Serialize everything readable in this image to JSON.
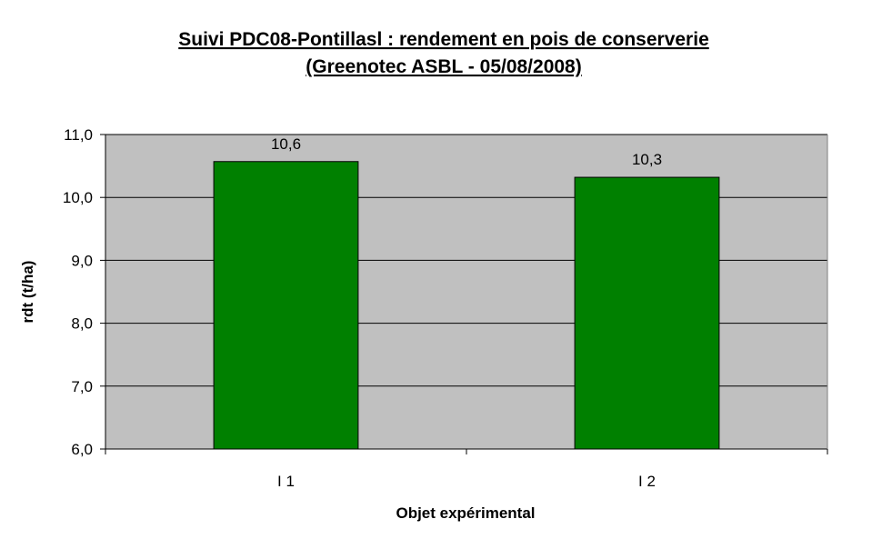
{
  "chart_data": {
    "type": "bar",
    "title": "Suivi PDC08-Pontillasl : rendement en pois de conserverie",
    "subtitle": "(Greenotec ASBL - 05/08/2008)",
    "xlabel": "Objet expérimental",
    "ylabel": "rdt (t/ha)",
    "categories": [
      "I 1",
      "I 2"
    ],
    "values": [
      10.57,
      10.32
    ],
    "data_labels": [
      "10,6",
      "10,3"
    ],
    "ylim": [
      6,
      11
    ],
    "y_ticks": [
      "6,0",
      "7,0",
      "8,0",
      "9,0",
      "10,0",
      "11,0"
    ],
    "grid": true,
    "legend": "none",
    "colors": {
      "bar": "#008000",
      "bar_border": "#000000",
      "plot_background": "#c0c0c0",
      "gridline": "#000000"
    }
  }
}
